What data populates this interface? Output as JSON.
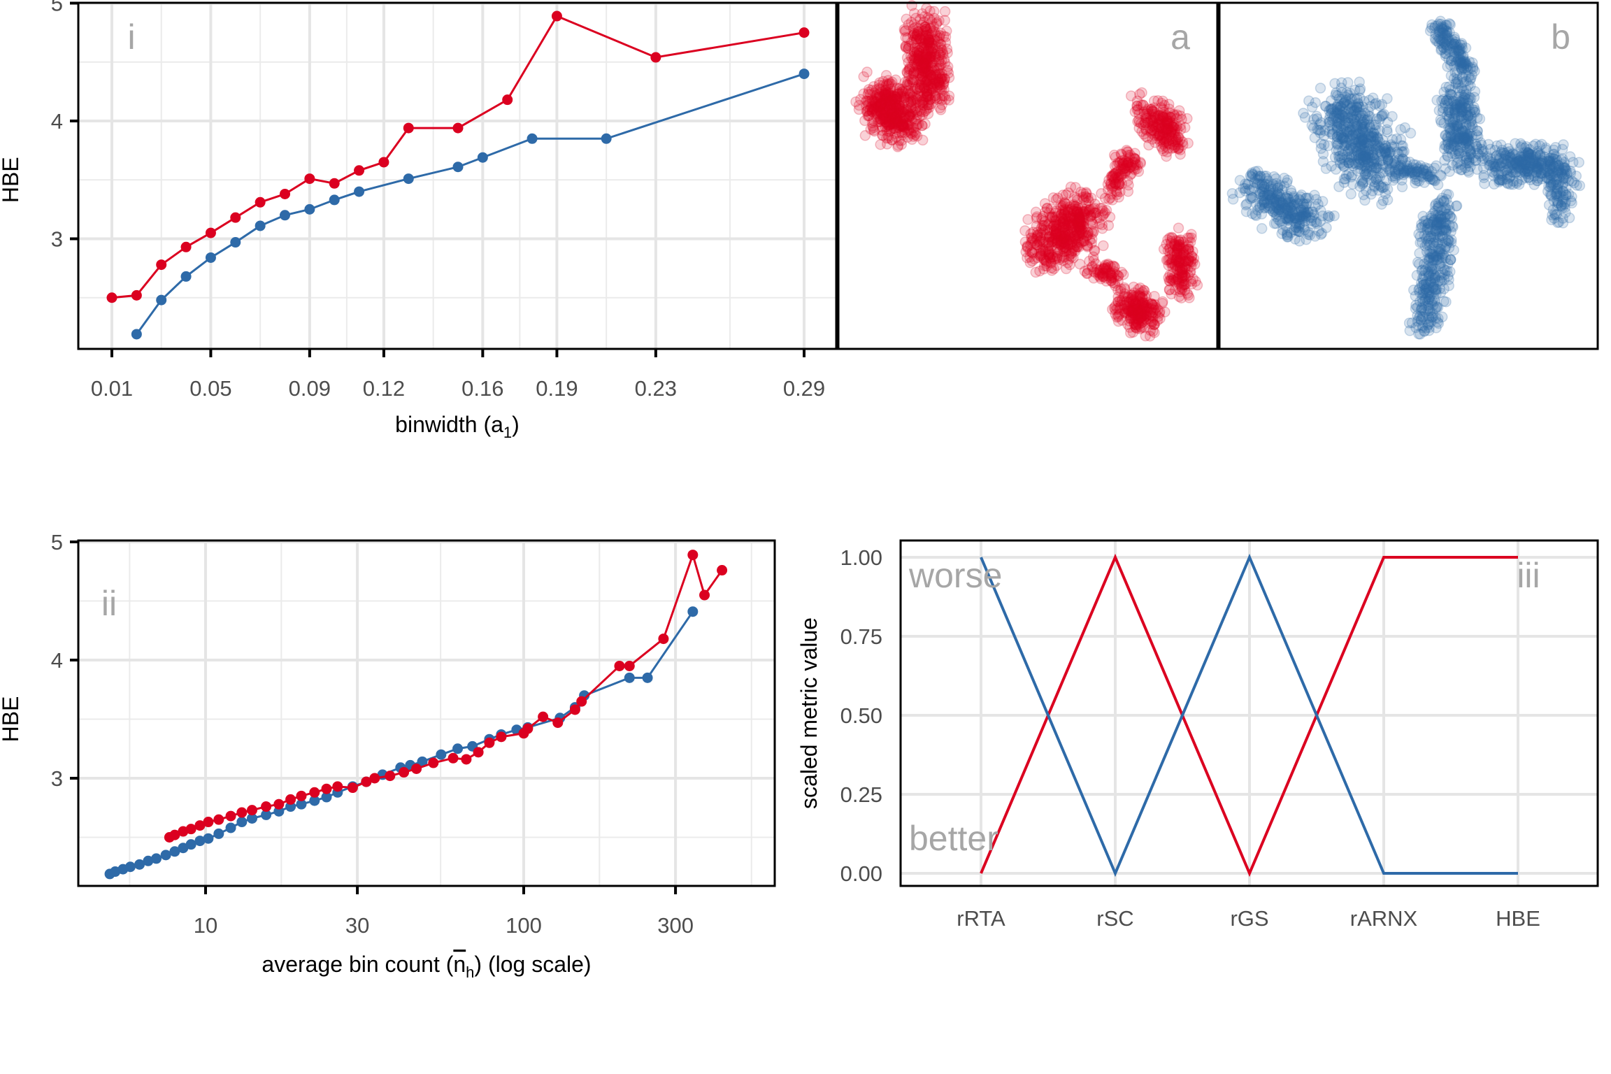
{
  "colors": {
    "red": "#DB0020",
    "blue": "#2E6AA8"
  },
  "chart_data": [
    {
      "panel": "i",
      "type": "line",
      "xlabel": "binwidth (a",
      "xlabel_sub": "1",
      "xlabel_end": ")",
      "ylabel": "HBE",
      "xlim": [
        0.0,
        0.3
      ],
      "ylim": [
        2.06,
        5.0
      ],
      "x_ticks": [
        0.01,
        0.05,
        0.09,
        0.12,
        0.16,
        0.19,
        0.23,
        0.29
      ],
      "x_tick_labels": [
        "0.01",
        "0.05",
        "0.09",
        "0.12",
        "0.16",
        "0.19",
        "0.23",
        "0.29"
      ],
      "y_ticks": [
        3,
        4,
        5
      ],
      "y_tick_labels": [
        "3",
        "4",
        "5"
      ],
      "grid": true,
      "series": [
        {
          "color": "red",
          "x": [
            0.01,
            0.02,
            0.03,
            0.04,
            0.05,
            0.06,
            0.07,
            0.08,
            0.09,
            0.1,
            0.11,
            0.12,
            0.13,
            0.15,
            0.17,
            0.19,
            0.23,
            0.29
          ],
          "y": [
            2.5,
            2.52,
            2.78,
            2.93,
            3.05,
            3.18,
            3.31,
            3.38,
            3.51,
            3.47,
            3.58,
            3.65,
            3.94,
            3.94,
            4.18,
            4.89,
            4.54,
            4.75
          ]
        },
        {
          "color": "blue",
          "x": [
            0.02,
            0.03,
            0.04,
            0.05,
            0.06,
            0.07,
            0.08,
            0.09,
            0.1,
            0.11,
            0.13,
            0.15,
            0.16,
            0.18,
            0.21,
            0.29
          ],
          "y": [
            2.19,
            2.48,
            2.68,
            2.84,
            2.97,
            3.11,
            3.2,
            3.25,
            3.33,
            3.4,
            3.51,
            3.61,
            3.69,
            3.85,
            3.85,
            4.4
          ]
        }
      ]
    },
    {
      "panel": "a",
      "type": "scatter",
      "color": "red",
      "grid": false
    },
    {
      "panel": "b",
      "type": "scatter",
      "color": "blue",
      "grid": false
    },
    {
      "panel": "ii",
      "type": "line",
      "xlabel": "average bin count (",
      "xlabel_sym": "n",
      "xlabel_sub": "h",
      "xlabel_end": ") (log scale)",
      "ylabel": "HBE",
      "x_scale": "log",
      "xlim": [
        4.4,
        540
      ],
      "ylim": [
        2.07,
        5.0
      ],
      "x_ticks": [
        10,
        30,
        100,
        300
      ],
      "x_tick_labels": [
        "10",
        "30",
        "100",
        "300"
      ],
      "y_ticks": [
        3,
        4,
        5
      ],
      "y_tick_labels": [
        "3",
        "4",
        "5"
      ],
      "grid": true,
      "series": [
        {
          "color": "blue",
          "x": [
            5.0,
            5.2,
            5.5,
            5.8,
            6.2,
            6.6,
            7.0,
            7.5,
            8.0,
            8.5,
            9.0,
            9.6,
            10.2,
            11,
            12,
            13,
            14,
            15.5,
            17,
            18.5,
            20,
            22,
            24,
            26,
            29,
            32,
            36,
            41,
            44,
            48,
            55,
            62,
            69,
            78,
            85,
            95,
            103,
            130,
            145,
            155,
            215,
            245,
            340
          ],
          "y": [
            2.19,
            2.21,
            2.23,
            2.25,
            2.27,
            2.3,
            2.32,
            2.35,
            2.38,
            2.41,
            2.44,
            2.47,
            2.49,
            2.53,
            2.58,
            2.63,
            2.66,
            2.69,
            2.72,
            2.76,
            2.78,
            2.81,
            2.84,
            2.88,
            2.93,
            2.97,
            3.03,
            3.09,
            3.11,
            3.14,
            3.2,
            3.25,
            3.27,
            3.33,
            3.37,
            3.41,
            3.43,
            3.51,
            3.6,
            3.7,
            3.85,
            3.85,
            4.41
          ]
        },
        {
          "color": "red",
          "x": [
            7.7,
            8.0,
            8.5,
            9.0,
            9.6,
            10.2,
            11,
            12,
            13,
            14,
            15.5,
            17,
            18.5,
            20,
            22,
            24,
            26,
            29,
            32,
            34,
            38,
            42,
            46,
            52,
            60,
            66,
            72,
            78,
            85,
            100,
            103,
            115,
            128,
            145,
            152,
            200,
            215,
            275,
            340,
            370,
            420
          ],
          "y": [
            2.5,
            2.52,
            2.55,
            2.57,
            2.6,
            2.63,
            2.65,
            2.68,
            2.71,
            2.73,
            2.76,
            2.78,
            2.82,
            2.85,
            2.88,
            2.91,
            2.93,
            2.92,
            2.97,
            3.0,
            3.02,
            3.05,
            3.08,
            3.13,
            3.17,
            3.16,
            3.22,
            3.3,
            3.35,
            3.38,
            3.42,
            3.52,
            3.47,
            3.58,
            3.65,
            3.95,
            3.95,
            4.18,
            4.89,
            4.55,
            4.76
          ]
        }
      ]
    },
    {
      "panel": "iii",
      "type": "line",
      "ylabel": "scaled metric value",
      "categories": [
        "rRTA",
        "rSC",
        "rGS",
        "rARNX",
        "HBE"
      ],
      "ylim": [
        -0.04,
        1.05
      ],
      "y_ticks": [
        0,
        0.25,
        0.5,
        0.75,
        1.0
      ],
      "y_tick_labels": [
        "0.00",
        "0.25",
        "0.50",
        "0.75",
        "1.00"
      ],
      "annotations": {
        "top": "worse",
        "bottom": "better"
      },
      "grid": true,
      "series": [
        {
          "color": "red",
          "values": [
            0,
            1,
            0,
            1,
            1
          ]
        },
        {
          "color": "blue",
          "values": [
            1,
            0,
            1,
            0,
            0
          ]
        }
      ]
    }
  ]
}
